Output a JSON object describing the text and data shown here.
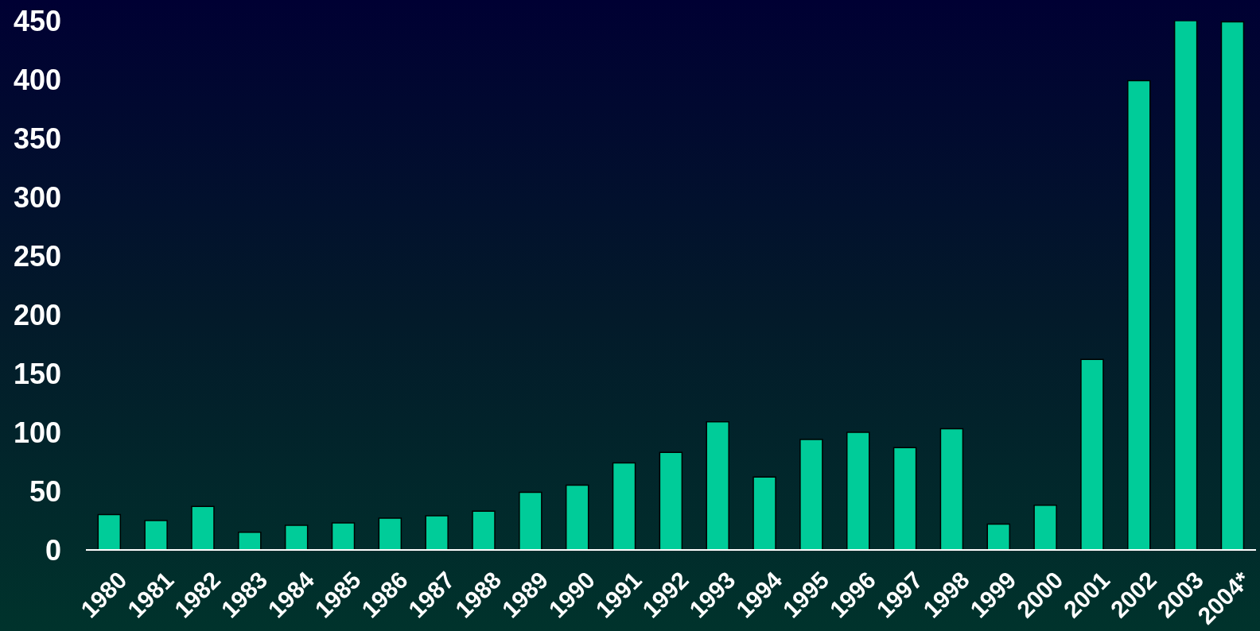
{
  "chart_data": {
    "type": "bar",
    "categories": [
      "1980",
      "1981",
      "1982",
      "1983",
      "1984",
      "1985",
      "1986",
      "1987",
      "1988",
      "1989",
      "1990",
      "1991",
      "1992",
      "1993",
      "1994",
      "1995",
      "1996",
      "1997",
      "1998",
      "1999",
      "2000",
      "2001",
      "2002",
      "2003",
      "2004*"
    ],
    "values": [
      30,
      25,
      37,
      15,
      21,
      23,
      27,
      29,
      33,
      49,
      55,
      74,
      83,
      109,
      62,
      94,
      100,
      87,
      103,
      22,
      38,
      162,
      399,
      450,
      449
    ],
    "color": "#00cc99",
    "ylim": [
      0,
      450
    ],
    "yticks": [
      0,
      50,
      100,
      150,
      200,
      250,
      300,
      350,
      400,
      450
    ]
  }
}
